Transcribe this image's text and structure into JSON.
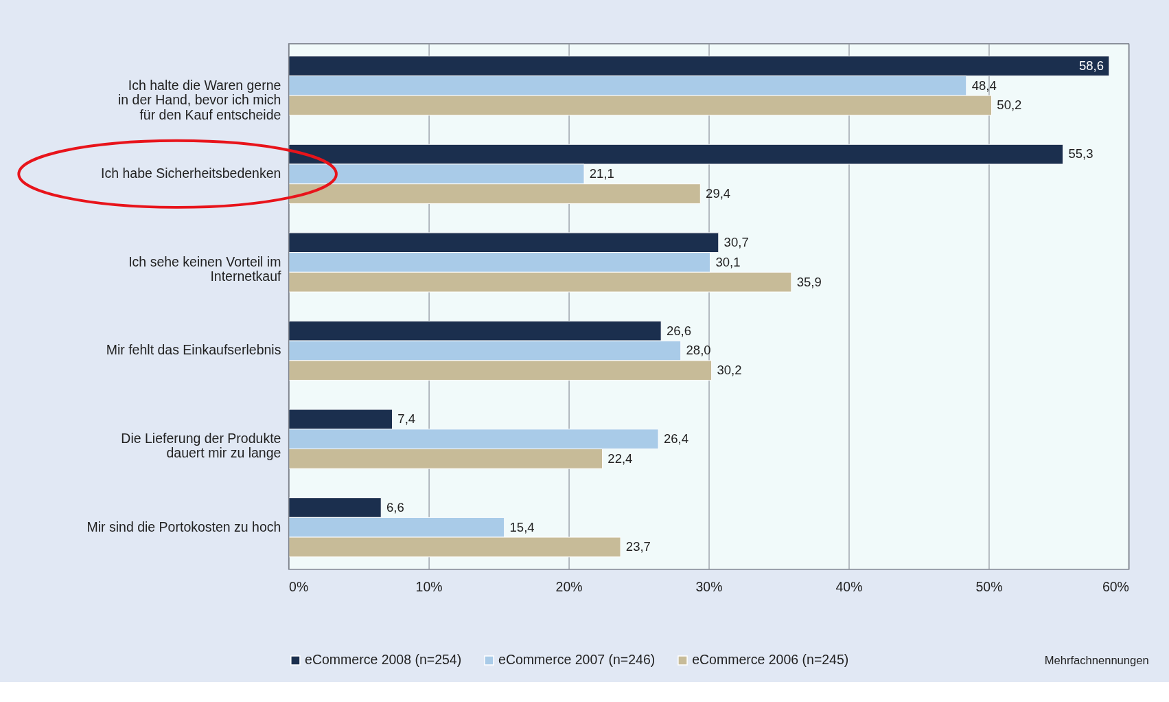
{
  "chart_data": {
    "type": "bar",
    "orientation": "horizontal",
    "categories": [
      "Ich halte die Waren gerne\nin der Hand, bevor ich mich\nfür den Kauf entscheide",
      "Ich habe Sicherheitsbedenken",
      "Ich sehe keinen Vorteil im\nInternetkauf",
      "Mir fehlt das Einkaufserlebnis",
      "Die Lieferung der Produkte\ndauert mir zu lange",
      "Mir sind die Portokosten zu hoch"
    ],
    "series": [
      {
        "name": "eCommerce 2008 (n=254)",
        "color": "#1b2f4e",
        "values": [
          58.6,
          55.3,
          30.7,
          26.6,
          7.4,
          6.6
        ],
        "value_labels": [
          "58,6",
          "55,3",
          "30,7",
          "26,6",
          "7,4",
          "6,6"
        ]
      },
      {
        "name": "eCommerce 2007 (n=246)",
        "color": "#a9cbe8",
        "values": [
          48.4,
          21.1,
          30.1,
          28.0,
          26.4,
          15.4
        ],
        "value_labels": [
          "48,4",
          "21,1",
          "30,1",
          "28,0",
          "26,4",
          "15,4"
        ]
      },
      {
        "name": "eCommerce 2006 (n=245)",
        "color": "#c7bb98",
        "values": [
          50.2,
          29.4,
          35.9,
          30.2,
          22.4,
          23.7
        ],
        "value_labels": [
          "50,2",
          "29,4",
          "35,9",
          "30,2",
          "22,4",
          "23,7"
        ]
      }
    ],
    "xlim": [
      0,
      60
    ],
    "xticks": [
      {
        "value": 0,
        "label": "0%"
      },
      {
        "value": 10,
        "label": "10%"
      },
      {
        "value": 20,
        "label": "20%"
      },
      {
        "value": 30,
        "label": "30%"
      },
      {
        "value": 40,
        "label": "40%"
      },
      {
        "value": 50,
        "label": "50%"
      },
      {
        "value": 60,
        "label": "60%"
      }
    ],
    "grid": "x",
    "legend": "bottom",
    "annotations": [
      "Mehrfachnennungen"
    ]
  }
}
